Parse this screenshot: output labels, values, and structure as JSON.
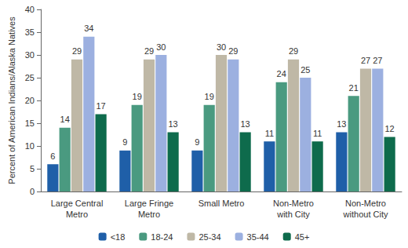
{
  "chart_data": {
    "type": "bar",
    "y_label": "Percent of American Indians/Alaska Natives",
    "categories": [
      "Large Central\nMetro",
      "Large Fringe\nMetro",
      "Small Metro",
      "Non-Metro\nwith City",
      "Non-Metro\nwithout City"
    ],
    "series": [
      {
        "name": "<18",
        "color": "#1f5fa8",
        "values": [
          6,
          9,
          9,
          11,
          13
        ]
      },
      {
        "name": "18-24",
        "color": "#4a9a80",
        "values": [
          14,
          19,
          19,
          24,
          21
        ]
      },
      {
        "name": "25-34",
        "color": "#bfb8a6",
        "values": [
          29,
          29,
          30,
          29,
          27
        ]
      },
      {
        "name": "35-44",
        "color": "#9cb0e0",
        "values": [
          34,
          30,
          29,
          25,
          27
        ]
      },
      {
        "name": "45+",
        "color": "#0e6b4c",
        "values": [
          17,
          13,
          13,
          11,
          12
        ]
      }
    ],
    "ylim": [
      0,
      40
    ],
    "yticks": [
      0,
      5,
      10,
      15,
      20,
      25,
      30,
      35,
      40
    ],
    "grid": false,
    "legend": "bottom",
    "data_labels": true
  }
}
